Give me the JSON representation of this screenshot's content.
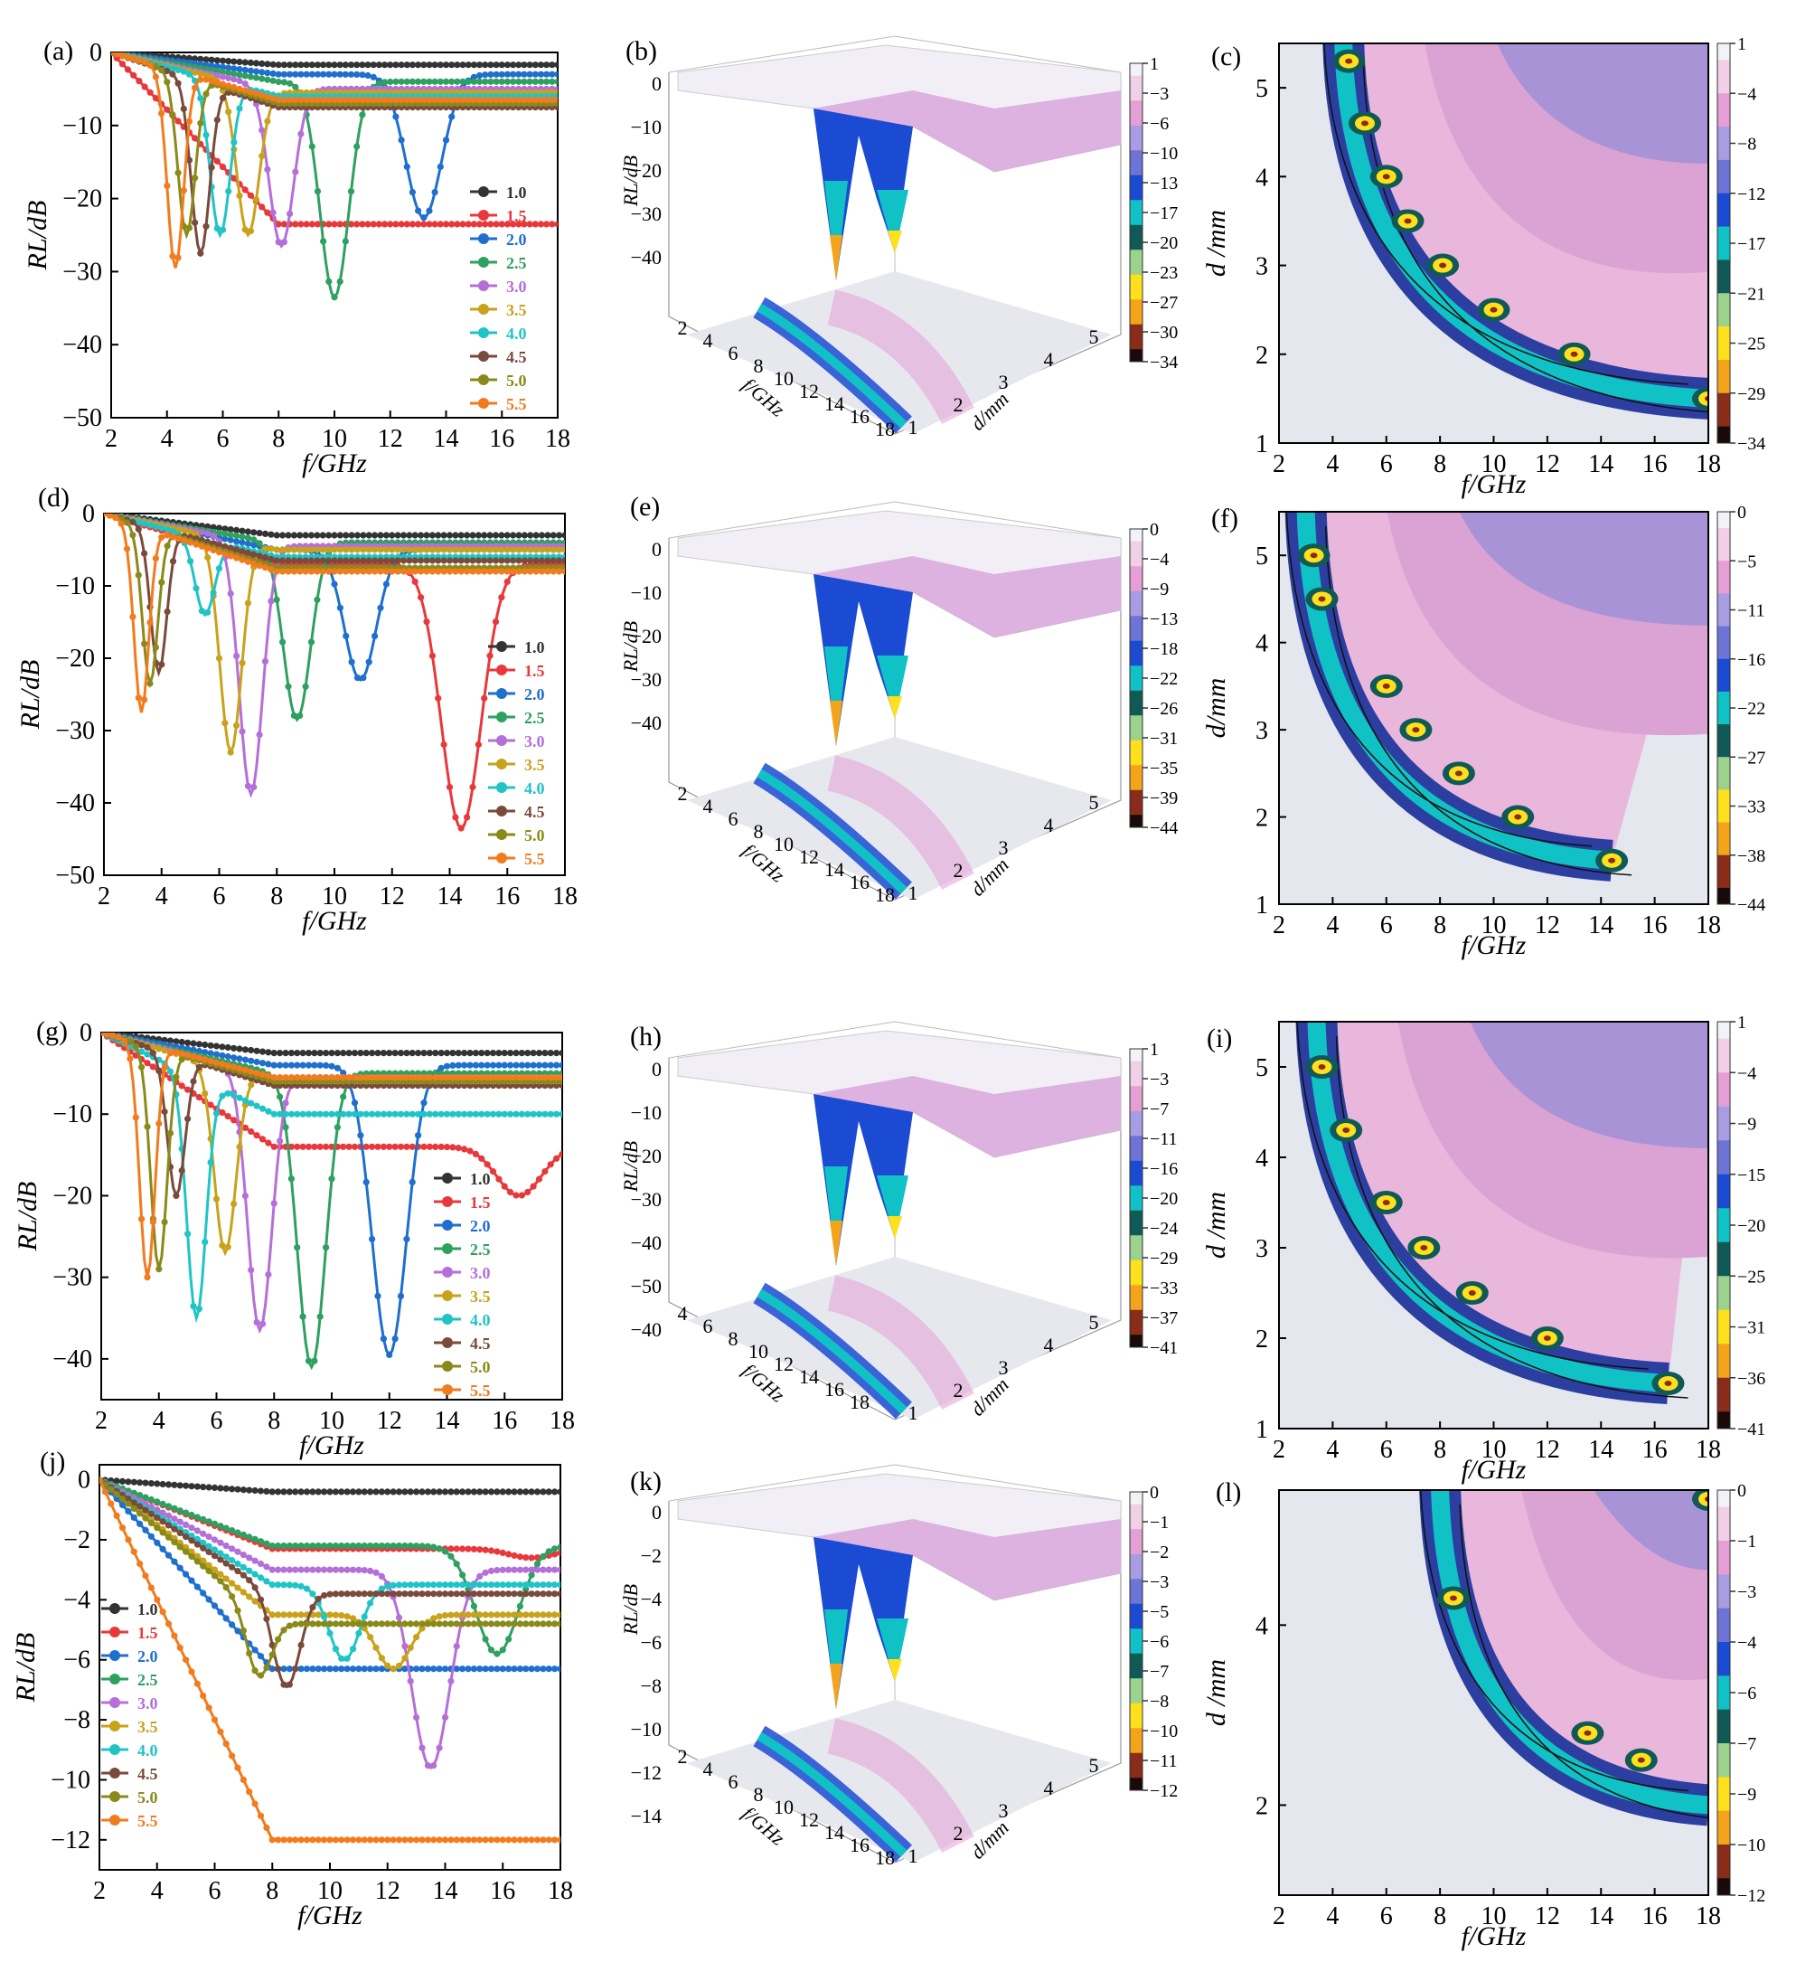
{
  "figure": {
    "series_colors": [
      "#333333",
      "#e8383b",
      "#1f6fce",
      "#2ea060",
      "#b46fd8",
      "#c9a21c",
      "#20c4c7",
      "#7a4a3c",
      "#8a8a1a",
      "#f27b1e"
    ],
    "ylabel_text": "RL/dB",
    "dlabel_text": "d/mm",
    "flabel_text": "f/GHz"
  },
  "chart_data": [
    {
      "panel": "a",
      "label": "(a)",
      "type": "line",
      "xlabel": "f/GHz",
      "ylabel": "RL/dB",
      "xlim": [
        2,
        18
      ],
      "ylim": [
        -50,
        0
      ],
      "xticks": [
        2,
        4,
        6,
        8,
        10,
        12,
        14,
        16,
        18
      ],
      "yticks": [
        0,
        -10,
        -20,
        -30,
        -40,
        -50
      ],
      "legend": [
        "1.0",
        "1.5",
        "2.0",
        "2.5",
        "3.0",
        "3.5",
        "4.0",
        "4.5",
        "5.0",
        "5.5"
      ],
      "legend_position": "right",
      "series": [
        {
          "name": "1.0",
          "peak_f": null,
          "peak_rl": -1.7,
          "end_rl": -1.7
        },
        {
          "name": "1.5",
          "peak_f": 18.0,
          "peak_rl": -23.5,
          "end_rl": -23.5
        },
        {
          "name": "2.0",
          "peak_f": 13.2,
          "peak_rl": -22.6,
          "end_rl": -3.0
        },
        {
          "name": "2.5",
          "peak_f": 10.0,
          "peak_rl": -33.5,
          "end_rl": -4.0
        },
        {
          "name": "3.0",
          "peak_f": 8.1,
          "peak_rl": -26.5,
          "end_rl": -5.0
        },
        {
          "name": "3.5",
          "peak_f": 6.9,
          "peak_rl": -25.0,
          "end_rl": -5.5
        },
        {
          "name": "4.0",
          "peak_f": 5.9,
          "peak_rl": -25.0,
          "end_rl": -6.0
        },
        {
          "name": "4.5",
          "peak_f": 5.2,
          "peak_rl": -27.5,
          "end_rl": -7.5
        },
        {
          "name": "5.0",
          "peak_f": 4.7,
          "peak_rl": -25.0,
          "end_rl": -7.0
        },
        {
          "name": "5.5",
          "peak_f": 4.3,
          "peak_rl": -29.5,
          "end_rl": -6.5
        }
      ]
    },
    {
      "panel": "d",
      "label": "(d)",
      "type": "line",
      "xlabel": "f/GHz",
      "ylabel": "RL/dB",
      "xlim": [
        2,
        18
      ],
      "ylim": [
        -50,
        0
      ],
      "xticks": [
        2,
        4,
        6,
        8,
        10,
        12,
        14,
        16,
        18
      ],
      "yticks": [
        0,
        -10,
        -20,
        -30,
        -40,
        -50
      ],
      "legend": [
        "1.0",
        "1.5",
        "2.0",
        "2.5",
        "3.0",
        "3.5",
        "4.0",
        "4.5",
        "5.0",
        "5.5"
      ],
      "legend_position": "right",
      "series": [
        {
          "name": "1.0",
          "peak_f": null,
          "peak_rl": -3.0,
          "end_rl": -3.0
        },
        {
          "name": "1.5",
          "peak_f": 14.4,
          "peak_rl": -43.5,
          "end_rl": -7.0
        },
        {
          "name": "2.0",
          "peak_f": 10.9,
          "peak_rl": -23.0,
          "end_rl": -5.0
        },
        {
          "name": "2.5",
          "peak_f": 8.7,
          "peak_rl": -28.5,
          "end_rl": -4.0
        },
        {
          "name": "3.0",
          "peak_f": 7.1,
          "peak_rl": -38.8,
          "end_rl": -4.5
        },
        {
          "name": "3.5",
          "peak_f": 6.4,
          "peak_rl": -33.0,
          "end_rl": -5.0
        },
        {
          "name": "4.0",
          "peak_f": 5.5,
          "peak_rl": -14.0,
          "end_rl": -6.0
        },
        {
          "name": "4.5",
          "peak_f": 3.9,
          "peak_rl": -22.0,
          "end_rl": -6.5
        },
        {
          "name": "5.0",
          "peak_f": 3.6,
          "peak_rl": -23.5,
          "end_rl": -7.5
        },
        {
          "name": "5.5",
          "peak_f": 3.3,
          "peak_rl": -27.5,
          "end_rl": -8.0
        }
      ]
    },
    {
      "panel": "g",
      "label": "(g)",
      "type": "line",
      "xlabel": "f/GHz",
      "ylabel": "RL/dB",
      "xlim": [
        2,
        18
      ],
      "ylim": [
        -45,
        0
      ],
      "xticks": [
        2,
        4,
        6,
        8,
        10,
        12,
        14,
        16,
        18
      ],
      "yticks": [
        0,
        -10,
        -20,
        -30,
        -40
      ],
      "legend": [
        "1.0",
        "1.5",
        "2.0",
        "2.5",
        "3.0",
        "3.5",
        "4.0",
        "4.5",
        "5.0",
        "5.5"
      ],
      "legend_position": "right",
      "series": [
        {
          "name": "1.0",
          "peak_f": null,
          "peak_rl": -2.5,
          "end_rl": -2.5
        },
        {
          "name": "1.5",
          "peak_f": 16.5,
          "peak_rl": -20.0,
          "end_rl": -14.0
        },
        {
          "name": "2.0",
          "peak_f": 12.0,
          "peak_rl": -39.5,
          "end_rl": -4.0
        },
        {
          "name": "2.5",
          "peak_f": 9.3,
          "peak_rl": -41.0,
          "end_rl": -5.0
        },
        {
          "name": "3.0",
          "peak_f": 7.5,
          "peak_rl": -36.5,
          "end_rl": -5.5
        },
        {
          "name": "3.5",
          "peak_f": 6.3,
          "peak_rl": -27.0,
          "end_rl": -6.0
        },
        {
          "name": "4.0",
          "peak_f": 5.3,
          "peak_rl": -35.0,
          "end_rl": -10.0
        },
        {
          "name": "4.5",
          "peak_f": 4.6,
          "peak_rl": -20.0,
          "end_rl": -6.5
        },
        {
          "name": "5.0",
          "peak_f": 4.0,
          "peak_rl": -29.0,
          "end_rl": -6.0
        },
        {
          "name": "5.5",
          "peak_f": 3.6,
          "peak_rl": -30.0,
          "end_rl": -5.5
        }
      ]
    },
    {
      "panel": "j",
      "label": "(j)",
      "type": "line",
      "xlabel": "f/GHz",
      "ylabel": "RL/dB",
      "xlim": [
        2,
        18
      ],
      "ylim": [
        -13,
        0.5
      ],
      "xticks": [
        2,
        4,
        6,
        8,
        10,
        12,
        14,
        16,
        18
      ],
      "yticks": [
        0,
        -2,
        -4,
        -6,
        -8,
        -10,
        -12
      ],
      "legend": [
        "1.0",
        "1.5",
        "2.0",
        "2.5",
        "3.0",
        "3.5",
        "4.0",
        "4.5",
        "5.0",
        "5.5"
      ],
      "legend_position": "left",
      "series": [
        {
          "name": "1.0",
          "peak_f": null,
          "peak_rl": -0.4,
          "end_rl": -0.4
        },
        {
          "name": "1.5",
          "peak_f": 17.0,
          "peak_rl": -2.6,
          "end_rl": -2.3
        },
        {
          "name": "2.0",
          "peak_f": 17.8,
          "peak_rl": -6.3,
          "end_rl": -6.3
        },
        {
          "name": "2.5",
          "peak_f": 15.8,
          "peak_rl": -5.8,
          "end_rl": -2.2
        },
        {
          "name": "3.0",
          "peak_f": 13.5,
          "peak_rl": -9.6,
          "end_rl": -3.0
        },
        {
          "name": "3.5",
          "peak_f": 12.2,
          "peak_rl": -6.3,
          "end_rl": -4.5
        },
        {
          "name": "4.0",
          "peak_f": 10.5,
          "peak_rl": -6.0,
          "end_rl": -3.5
        },
        {
          "name": "4.5",
          "peak_f": 8.5,
          "peak_rl": -6.9,
          "end_rl": -3.8
        },
        {
          "name": "5.0",
          "peak_f": 7.5,
          "peak_rl": -6.5,
          "end_rl": -4.8
        },
        {
          "name": "5.5",
          "peak_f": 18.0,
          "peak_rl": -12.0,
          "end_rl": -12.0
        }
      ]
    },
    {
      "panel": "b",
      "label": "(b)",
      "type": "surface3d",
      "ylabel": "RL/dB",
      "xlabel": "f/GHz",
      "zlabel": "d/mm",
      "rl_ticks": [
        0,
        -10,
        -20,
        -30,
        -40
      ],
      "f_ticks": [
        2,
        4,
        6,
        8,
        10,
        12,
        14,
        16,
        18
      ],
      "d_ticks": [
        1,
        2,
        3,
        4,
        5
      ],
      "colorbar": [
        1,
        -3,
        -6,
        -10,
        -13,
        -17,
        -20,
        -23,
        -27,
        -30,
        -34
      ]
    },
    {
      "panel": "e",
      "label": "(e)",
      "type": "surface3d",
      "ylabel": "RL/dB",
      "xlabel": "f/GHz",
      "zlabel": "d/mm",
      "rl_ticks": [
        0,
        -10,
        -20,
        -30,
        -40
      ],
      "f_ticks": [
        2,
        4,
        6,
        8,
        10,
        12,
        14,
        16,
        18
      ],
      "d_ticks": [
        1,
        2,
        3,
        4,
        5
      ],
      "colorbar": [
        0,
        -4,
        -9,
        -13,
        -18,
        -22,
        -26,
        -31,
        -35,
        -39,
        -44
      ]
    },
    {
      "panel": "h",
      "label": "(h)",
      "type": "surface3d",
      "ylabel": "RL/dB",
      "xlabel": "f/GHz",
      "zlabel": "d/mm",
      "rl_ticks": [
        0,
        -10,
        -20,
        -30,
        -40,
        -50,
        -40
      ],
      "f_ticks": [
        4,
        6,
        8,
        10,
        12,
        14,
        16,
        18
      ],
      "d_ticks": [
        1,
        2,
        3,
        4,
        5
      ],
      "colorbar": [
        1,
        -3,
        -7,
        -11,
        -16,
        -20,
        -24,
        -29,
        -33,
        -37,
        -41
      ]
    },
    {
      "panel": "k",
      "label": "(k)",
      "type": "surface3d",
      "ylabel": "RL/dB",
      "xlabel": "f/GHz",
      "zlabel": "d/mm",
      "rl_ticks": [
        0,
        -2,
        -4,
        -6,
        -8,
        -10,
        -12,
        -14
      ],
      "f_ticks": [
        2,
        4,
        6,
        8,
        10,
        12,
        14,
        16,
        18
      ],
      "d_ticks": [
        1,
        2,
        3,
        4,
        5
      ],
      "colorbar": [
        0,
        -1,
        -2,
        -3,
        -5,
        -6,
        -7,
        -8,
        -10,
        -11,
        -12
      ]
    },
    {
      "panel": "c",
      "label": "(c)",
      "type": "heatmap",
      "xlabel": "f/GHz",
      "ylabel": "d /mm",
      "xlim": [
        2,
        18
      ],
      "ylim": [
        1,
        5.5
      ],
      "xticks": [
        2,
        4,
        6,
        8,
        10,
        12,
        14,
        16,
        18
      ],
      "yticks": [
        1,
        2,
        3,
        4,
        5
      ],
      "colorbar": [
        1,
        -4,
        -8,
        -12,
        -17,
        -21,
        -25,
        -29,
        -34
      ],
      "band": {
        "d1": 5.5,
        "f1": 4.4,
        "d2": 1.5,
        "f2": 18.0
      },
      "hotspots": [
        [
          4.6,
          5.3
        ],
        [
          5.2,
          4.6
        ],
        [
          6.0,
          4.0
        ],
        [
          6.8,
          3.5
        ],
        [
          8.1,
          3.0
        ],
        [
          10.0,
          2.5
        ],
        [
          13.0,
          2.0
        ],
        [
          18.0,
          1.5
        ]
      ]
    },
    {
      "panel": "f",
      "label": "(f)",
      "type": "heatmap",
      "xlabel": "f/GHz",
      "ylabel": "d/mm",
      "xlim": [
        2,
        18
      ],
      "ylim": [
        1,
        5.5
      ],
      "xticks": [
        2,
        4,
        6,
        8,
        10,
        12,
        14,
        16,
        18
      ],
      "yticks": [
        1,
        2,
        3,
        4,
        5
      ],
      "colorbar": [
        0,
        -5,
        -11,
        -16,
        -22,
        -27,
        -33,
        -38,
        -44
      ],
      "band": {
        "d1": 5.5,
        "f1": 3.0,
        "d2": 1.5,
        "f2": 14.4
      },
      "hotspots": [
        [
          3.3,
          5.0
        ],
        [
          3.6,
          4.5
        ],
        [
          6.0,
          3.5
        ],
        [
          7.1,
          3.0
        ],
        [
          8.7,
          2.5
        ],
        [
          10.9,
          2.0
        ],
        [
          14.4,
          1.5
        ]
      ]
    },
    {
      "panel": "i",
      "label": "(i)",
      "type": "heatmap",
      "xlabel": "f/GHz",
      "ylabel": "d /mm",
      "xlim": [
        2,
        18
      ],
      "ylim": [
        1,
        5.5
      ],
      "xticks": [
        2,
        4,
        6,
        8,
        10,
        12,
        14,
        16,
        18
      ],
      "yticks": [
        1,
        2,
        3,
        4,
        5
      ],
      "colorbar": [
        1,
        -4,
        -9,
        -15,
        -20,
        -25,
        -31,
        -36,
        -41
      ],
      "band": {
        "d1": 5.5,
        "f1": 3.4,
        "d2": 1.5,
        "f2": 16.5
      },
      "hotspots": [
        [
          3.6,
          5.0
        ],
        [
          4.5,
          4.3
        ],
        [
          6.0,
          3.5
        ],
        [
          7.4,
          3.0
        ],
        [
          9.2,
          2.5
        ],
        [
          12.0,
          2.0
        ],
        [
          16.5,
          1.5
        ]
      ]
    },
    {
      "panel": "l",
      "label": "(l)",
      "type": "heatmap",
      "xlabel": "f/GHz",
      "ylabel": "d /mm",
      "xlim": [
        2,
        18
      ],
      "ylim": [
        1,
        5.5
      ],
      "xticks": [
        2,
        4,
        6,
        8,
        10,
        12,
        14,
        16,
        18
      ],
      "yticks": [
        2,
        4
      ],
      "colorbar": [
        0,
        -1,
        -3,
        -4,
        -6,
        -7,
        -9,
        -10,
        -12
      ],
      "band": {
        "d1": 5.5,
        "f1": 8.0,
        "d2": 2.0,
        "f2": 18.0
      },
      "hotspots": [
        [
          8.5,
          4.3
        ],
        [
          13.5,
          2.8
        ],
        [
          15.5,
          2.5
        ],
        [
          18.0,
          5.4
        ]
      ]
    }
  ]
}
